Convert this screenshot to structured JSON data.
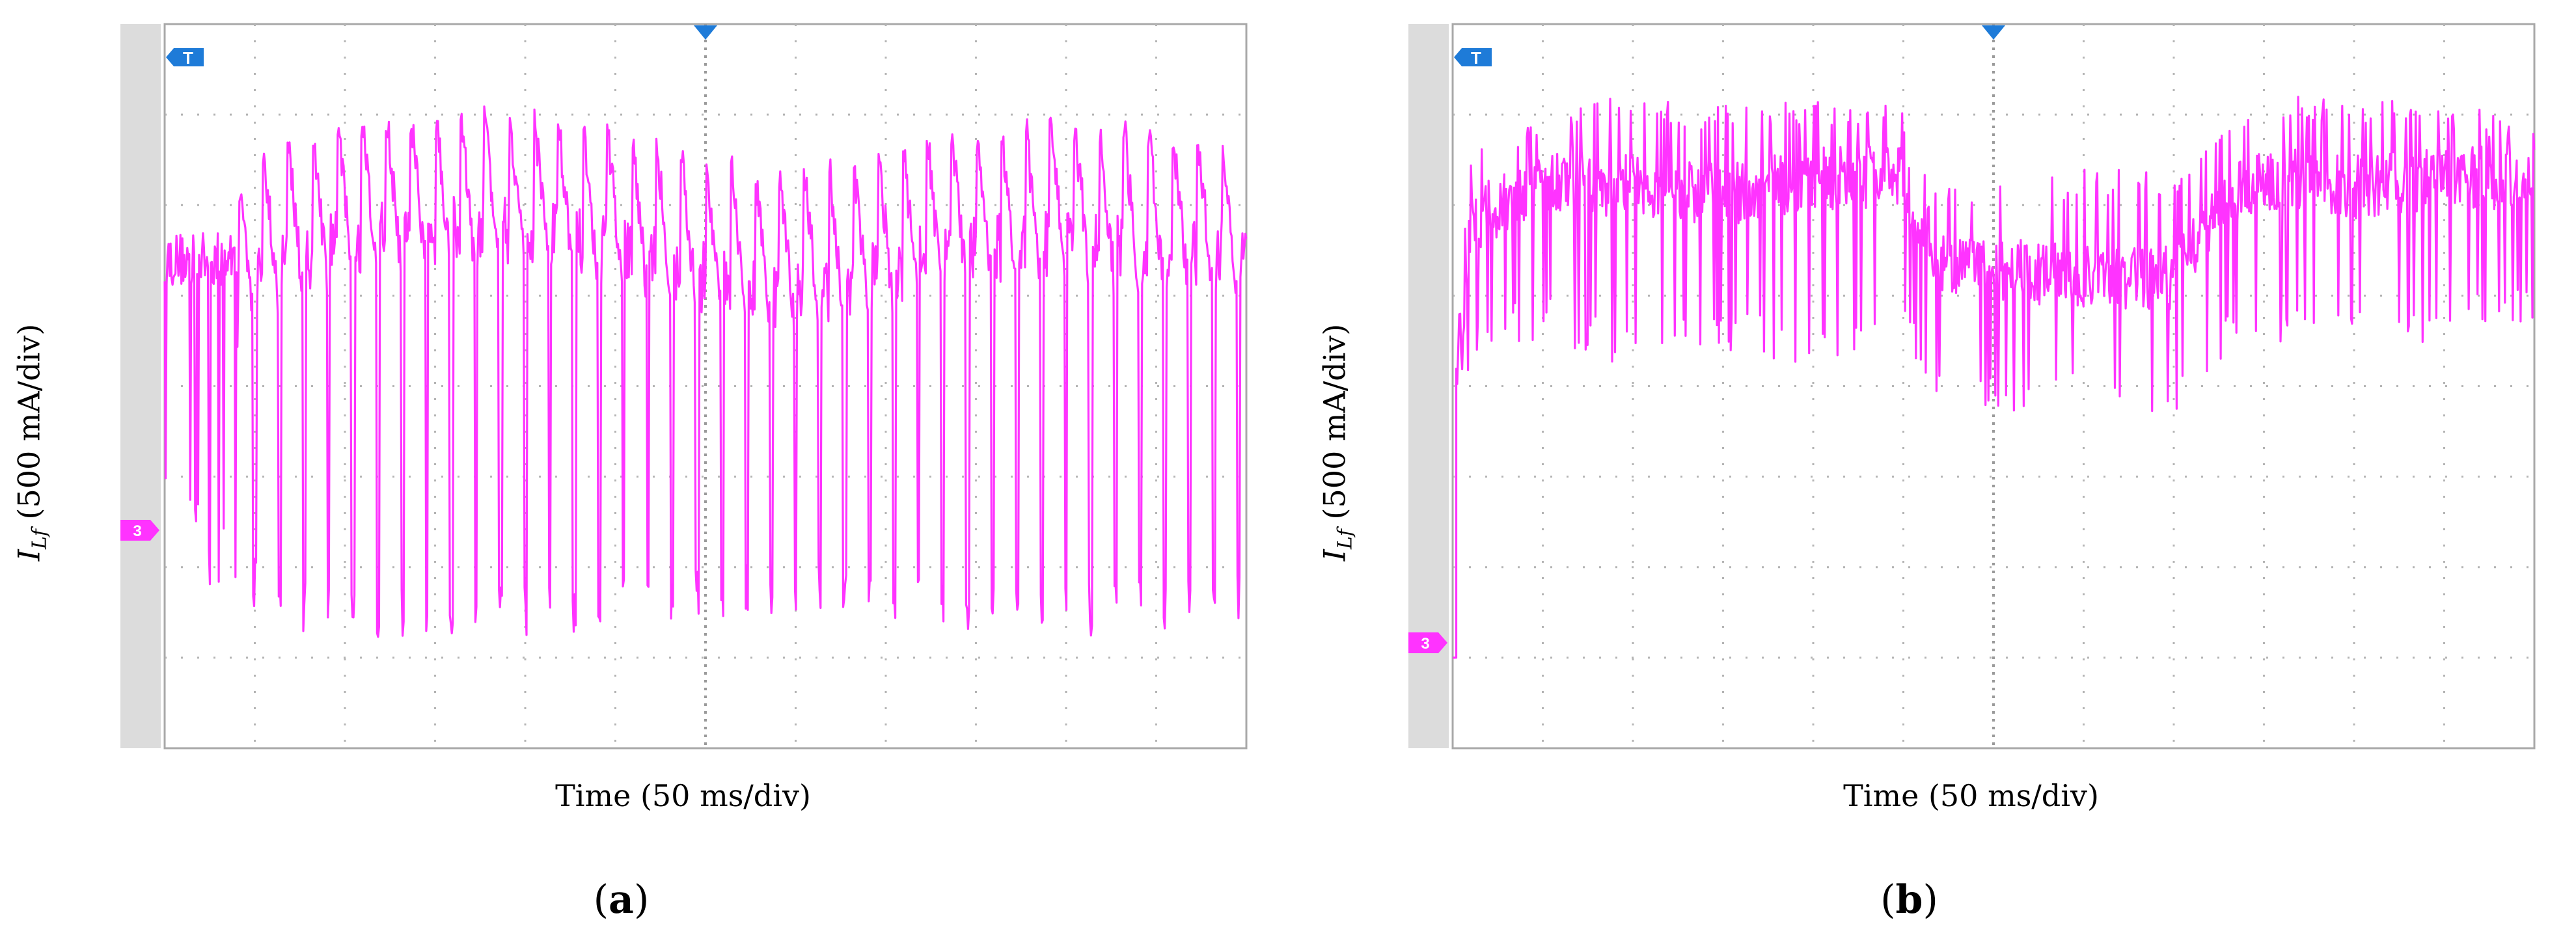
{
  "panels": [
    {
      "id": "a",
      "caption_letter": "a",
      "ylabel": {
        "symbol": "I",
        "subscript": "Lf",
        "unit": " (500 mA/div)"
      },
      "xlabel": "Time (50 ms/div)"
    },
    {
      "id": "b",
      "caption_letter": "b",
      "ylabel": {
        "symbol": "I",
        "subscript": "Lf",
        "unit": " (500 mA/div)"
      },
      "xlabel": "Time (50 ms/div)"
    }
  ],
  "chart_data": [
    {
      "type": "line",
      "panel": "a",
      "xlabel": "Time (50 ms/div)",
      "ylabel": "ILf (500 mA/div)",
      "x_divisions": 12,
      "y_divisions": 8,
      "xlim": [
        0,
        600
      ],
      "ylim": [
        -1500,
        2500
      ],
      "grid": true,
      "channel_marker": "3",
      "trigger_marker": "T",
      "series": [
        {
          "color": "#ff33ff",
          "description_type": "pulsating",
          "baseline_level": 1200,
          "peak_level": 2050,
          "trough_level": -900,
          "pulse_count": 44,
          "x": [
            0,
            25,
            50,
            75,
            100,
            150,
            200,
            250,
            300,
            350,
            400,
            450,
            500,
            550,
            600
          ],
          "upper_envelope": [
            1450,
            1250,
            1800,
            1900,
            2000,
            2050,
            2050,
            1950,
            1800,
            1700,
            1850,
            1950,
            2000,
            1950,
            1900
          ],
          "lower_envelope": [
            0,
            -600,
            -750,
            -850,
            -900,
            -900,
            -900,
            -850,
            -800,
            -750,
            -800,
            -850,
            -900,
            -850,
            -800
          ]
        }
      ]
    },
    {
      "type": "line",
      "panel": "b",
      "xlabel": "Time (50 ms/div)",
      "ylabel": "ILf (500 mA/div)",
      "x_divisions": 12,
      "y_divisions": 8,
      "xlim": [
        0,
        600
      ],
      "ylim": [
        -500,
        3500
      ],
      "grid": true,
      "channel_marker": "3",
      "trigger_marker": "T",
      "series": [
        {
          "color": "#ff33ff",
          "description_type": "pulsating",
          "start_level": 0,
          "step_time": 2,
          "x": [
            0,
            2,
            10,
            50,
            100,
            150,
            200,
            250,
            270,
            300,
            350,
            400,
            430,
            450,
            500,
            550,
            600
          ],
          "mean_level": [
            0,
            1500,
            2400,
            2650,
            2600,
            2550,
            2650,
            2650,
            2200,
            2150,
            2100,
            2100,
            2550,
            2650,
            2600,
            2650,
            2650
          ],
          "upper_envelope": [
            0,
            1800,
            2800,
            3050,
            3100,
            3050,
            3100,
            3050,
            2650,
            2600,
            2700,
            2700,
            3050,
            3100,
            3100,
            3050,
            3000
          ],
          "lower_envelope": [
            0,
            1200,
            1650,
            1750,
            1600,
            1700,
            1600,
            1750,
            1400,
            1300,
            1350,
            1300,
            1700,
            1750,
            1700,
            1750,
            1800
          ]
        }
      ]
    }
  ]
}
